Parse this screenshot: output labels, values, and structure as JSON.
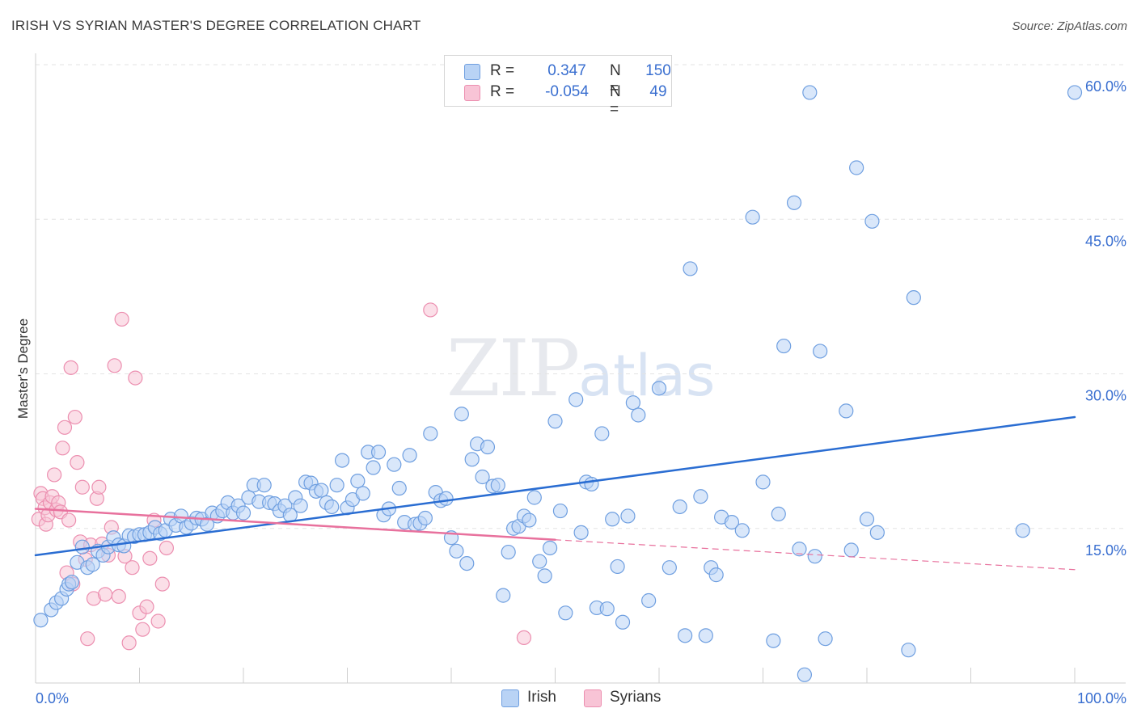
{
  "title": "IRISH VS SYRIAN MASTER'S DEGREE CORRELATION CHART",
  "source": "Source: ZipAtlas.com",
  "watermark": {
    "zip": "ZIP",
    "atlas": "atlas"
  },
  "colors": {
    "irish_fill": "#b9d3f5",
    "irish_stroke": "#6f9fe0",
    "irish_line": "#2a6dd2",
    "syrian_fill": "#f8c4d6",
    "syrian_stroke": "#ec8fb0",
    "syrian_line": "#e8719d",
    "axis_text": "#3a6fd0",
    "grid": "#e3e3e3"
  },
  "legend": {
    "irish": {
      "r_label": "R =",
      "r_value": "0.347",
      "n_label": "N =",
      "n_value": "150"
    },
    "syrians": {
      "r_label": "R =",
      "r_value": "-0.054",
      "n_label": "N =",
      "n_value": "49"
    }
  },
  "bottom_legend": {
    "irish": "Irish",
    "syrians": "Syrians"
  },
  "chart_data": {
    "type": "scatter",
    "title": "IRISH VS SYRIAN MASTER'S DEGREE CORRELATION CHART",
    "xlabel": "",
    "ylabel": "Master's Degree",
    "xlim": [
      0,
      100
    ],
    "ylim": [
      0,
      60
    ],
    "x_tick_labels": [
      "0.0%",
      "100.0%"
    ],
    "y_ticks": [
      15,
      30,
      45,
      60
    ],
    "y_tick_labels": [
      "15.0%",
      "30.0%",
      "45.0%",
      "60.0%"
    ],
    "grid": "horizontal dashed",
    "legend_position": "top-center",
    "series": [
      {
        "name": "Irish",
        "trend": {
          "x": [
            0,
            100
          ],
          "y": [
            12.4,
            25.8
          ],
          "style": "solid"
        },
        "points": [
          [
            0.5,
            6.1
          ],
          [
            1.5,
            7.1
          ],
          [
            2,
            7.8
          ],
          [
            2.5,
            8.2
          ],
          [
            3,
            9.1
          ],
          [
            3.2,
            9.6
          ],
          [
            3.5,
            9.8
          ],
          [
            4,
            11.7
          ],
          [
            4.5,
            13.2
          ],
          [
            5,
            11.2
          ],
          [
            5.5,
            11.5
          ],
          [
            6,
            12.8
          ],
          [
            6.5,
            12.4
          ],
          [
            7,
            13.2
          ],
          [
            7.5,
            14.1
          ],
          [
            8,
            13.4
          ],
          [
            8.5,
            13.3
          ],
          [
            9,
            14.3
          ],
          [
            9.5,
            14.2
          ],
          [
            10,
            14.4
          ],
          [
            10.5,
            14.4
          ],
          [
            11,
            14.6
          ],
          [
            11.5,
            15.1
          ],
          [
            12,
            14.5
          ],
          [
            12.5,
            14.8
          ],
          [
            13,
            15.9
          ],
          [
            13.5,
            15.3
          ],
          [
            14,
            16.2
          ],
          [
            14.5,
            15.1
          ],
          [
            15,
            15.5
          ],
          [
            15.5,
            16.0
          ],
          [
            16,
            15.9
          ],
          [
            16.5,
            15.4
          ],
          [
            17,
            16.5
          ],
          [
            17.5,
            16.2
          ],
          [
            18,
            16.7
          ],
          [
            18.5,
            17.5
          ],
          [
            19,
            16.5
          ],
          [
            19.5,
            17.2
          ],
          [
            20,
            16.5
          ],
          [
            20.5,
            18.0
          ],
          [
            21,
            19.2
          ],
          [
            21.5,
            17.6
          ],
          [
            22,
            19.2
          ],
          [
            22.5,
            17.5
          ],
          [
            23,
            17.4
          ],
          [
            23.5,
            16.7
          ],
          [
            24,
            17.2
          ],
          [
            24.5,
            16.3
          ],
          [
            25,
            18.0
          ],
          [
            25.5,
            17.2
          ],
          [
            26,
            19.5
          ],
          [
            26.5,
            19.4
          ],
          [
            27,
            18.6
          ],
          [
            27.5,
            18.7
          ],
          [
            28,
            17.5
          ],
          [
            28.5,
            17.1
          ],
          [
            29,
            19.2
          ],
          [
            29.5,
            21.6
          ],
          [
            30,
            17.0
          ],
          [
            30.5,
            17.8
          ],
          [
            31,
            19.6
          ],
          [
            31.5,
            18.4
          ],
          [
            32,
            22.4
          ],
          [
            32.5,
            20.9
          ],
          [
            33,
            22.4
          ],
          [
            33.5,
            16.3
          ],
          [
            34,
            16.9
          ],
          [
            34.5,
            21.2
          ],
          [
            35,
            18.9
          ],
          [
            35.5,
            15.6
          ],
          [
            36,
            22.1
          ],
          [
            36.5,
            15.4
          ],
          [
            37,
            15.5
          ],
          [
            37.5,
            16.0
          ],
          [
            38,
            24.2
          ],
          [
            38.5,
            18.5
          ],
          [
            39,
            17.7
          ],
          [
            39.5,
            17.9
          ],
          [
            40,
            14.1
          ],
          [
            40.5,
            12.8
          ],
          [
            41,
            26.1
          ],
          [
            41.5,
            11.6
          ],
          [
            42,
            21.7
          ],
          [
            42.5,
            23.2
          ],
          [
            43,
            20.0
          ],
          [
            43.5,
            22.9
          ],
          [
            44,
            19.1
          ],
          [
            44.5,
            19.2
          ],
          [
            45,
            8.5
          ],
          [
            45.5,
            12.7
          ],
          [
            46,
            15.0
          ],
          [
            46.5,
            15.2
          ],
          [
            47,
            16.2
          ],
          [
            47.5,
            15.8
          ],
          [
            48,
            18.0
          ],
          [
            48.5,
            11.8
          ],
          [
            49,
            10.4
          ],
          [
            49.5,
            13.1
          ],
          [
            50,
            25.4
          ],
          [
            50.5,
            16.7
          ],
          [
            51,
            6.8
          ],
          [
            52,
            27.5
          ],
          [
            52.5,
            14.6
          ],
          [
            53,
            19.5
          ],
          [
            53.5,
            19.3
          ],
          [
            54,
            7.3
          ],
          [
            54.5,
            24.2
          ],
          [
            55,
            7.2
          ],
          [
            55.5,
            15.9
          ],
          [
            56,
            11.3
          ],
          [
            56.5,
            5.9
          ],
          [
            57,
            16.2
          ],
          [
            57.5,
            27.2
          ],
          [
            58,
            26.0
          ],
          [
            59,
            8.0
          ],
          [
            60,
            28.6
          ],
          [
            61,
            11.2
          ],
          [
            62,
            17.1
          ],
          [
            62.5,
            4.6
          ],
          [
            63,
            40.2
          ],
          [
            64,
            18.1
          ],
          [
            64.5,
            4.6
          ],
          [
            65,
            11.2
          ],
          [
            65.5,
            10.5
          ],
          [
            66,
            16.1
          ],
          [
            67,
            15.6
          ],
          [
            68,
            14.8
          ],
          [
            69,
            45.2
          ],
          [
            70,
            19.5
          ],
          [
            71,
            4.1
          ],
          [
            71.5,
            16.4
          ],
          [
            72,
            32.7
          ],
          [
            73,
            46.6
          ],
          [
            73.5,
            13.0
          ],
          [
            74,
            0.8
          ],
          [
            74.5,
            57.3
          ],
          [
            75,
            12.3
          ],
          [
            75.5,
            32.2
          ],
          [
            76,
            4.3
          ],
          [
            78,
            26.4
          ],
          [
            78.5,
            12.9
          ],
          [
            79,
            50.0
          ],
          [
            80,
            15.9
          ],
          [
            80.5,
            44.8
          ],
          [
            81,
            14.6
          ],
          [
            84,
            3.2
          ],
          [
            84.5,
            37.4
          ],
          [
            95,
            14.8
          ],
          [
            100,
            57.3
          ]
        ]
      },
      {
        "name": "Syrians",
        "trend": {
          "x": [
            0,
            50
          ],
          "y": [
            16.9,
            13.9
          ],
          "style": "solid"
        },
        "trend_extension": {
          "x": [
            50,
            100
          ],
          "y": [
            13.9,
            11.0
          ],
          "style": "dashed"
        },
        "points": [
          [
            0.3,
            15.9
          ],
          [
            0.5,
            18.4
          ],
          [
            0.7,
            17.9
          ],
          [
            0.9,
            17.0
          ],
          [
            1.0,
            15.4
          ],
          [
            1.2,
            16.3
          ],
          [
            1.4,
            17.5
          ],
          [
            1.6,
            18.1
          ],
          [
            1.8,
            20.2
          ],
          [
            2.0,
            16.8
          ],
          [
            2.2,
            17.5
          ],
          [
            2.4,
            16.6
          ],
          [
            2.6,
            22.8
          ],
          [
            2.8,
            24.8
          ],
          [
            3.0,
            10.7
          ],
          [
            3.2,
            15.8
          ],
          [
            3.4,
            30.6
          ],
          [
            3.6,
            9.6
          ],
          [
            3.8,
            25.8
          ],
          [
            4.0,
            21.4
          ],
          [
            4.3,
            13.7
          ],
          [
            4.5,
            19.0
          ],
          [
            4.8,
            12.0
          ],
          [
            5.0,
            4.3
          ],
          [
            5.3,
            13.4
          ],
          [
            5.6,
            8.2
          ],
          [
            5.9,
            17.9
          ],
          [
            6.1,
            19.0
          ],
          [
            6.4,
            13.5
          ],
          [
            6.7,
            8.6
          ],
          [
            7.0,
            12.4
          ],
          [
            7.3,
            15.1
          ],
          [
            7.6,
            30.8
          ],
          [
            8.0,
            8.4
          ],
          [
            8.3,
            35.3
          ],
          [
            8.6,
            12.3
          ],
          [
            9.0,
            3.9
          ],
          [
            9.3,
            11.2
          ],
          [
            9.6,
            29.6
          ],
          [
            10.0,
            6.8
          ],
          [
            10.3,
            5.2
          ],
          [
            10.7,
            7.4
          ],
          [
            11.0,
            12.1
          ],
          [
            11.4,
            15.8
          ],
          [
            11.8,
            6.0
          ],
          [
            12.2,
            9.6
          ],
          [
            12.6,
            13.1
          ],
          [
            38,
            36.2
          ],
          [
            47,
            4.4
          ]
        ]
      }
    ]
  }
}
